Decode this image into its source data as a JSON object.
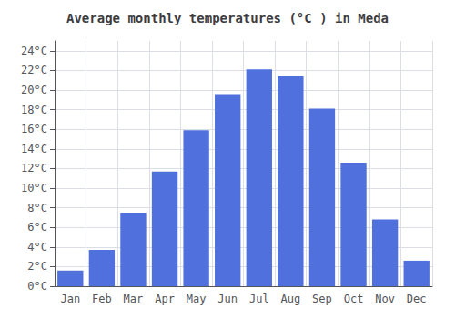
{
  "chart_data": {
    "type": "bar",
    "title": "Average monthly temperatures (°C ) in Meda",
    "categories": [
      "Jan",
      "Feb",
      "Mar",
      "Apr",
      "May",
      "Jun",
      "Jul",
      "Aug",
      "Sep",
      "Oct",
      "Nov",
      "Dec"
    ],
    "values": [
      1.6,
      3.7,
      7.5,
      11.7,
      15.9,
      19.5,
      22.1,
      21.4,
      18.1,
      12.6,
      6.8,
      2.6
    ],
    "ylim": [
      0,
      25.0
    ],
    "yticks": [
      {
        "value": 0,
        "label": "0°C"
      },
      {
        "value": 2,
        "label": "2°C"
      },
      {
        "value": 4,
        "label": "4°C"
      },
      {
        "value": 6,
        "label": "6°C"
      },
      {
        "value": 8,
        "label": "8°C"
      },
      {
        "value": 10,
        "label": "10°C"
      },
      {
        "value": 12,
        "label": "12°C"
      },
      {
        "value": 14,
        "label": "14°C"
      },
      {
        "value": 16,
        "label": "16°C"
      },
      {
        "value": 18,
        "label": "18°C"
      },
      {
        "value": 20,
        "label": "20°C"
      },
      {
        "value": 22,
        "label": "22°C"
      },
      {
        "value": 24,
        "label": "24°C"
      }
    ],
    "grid": true
  }
}
